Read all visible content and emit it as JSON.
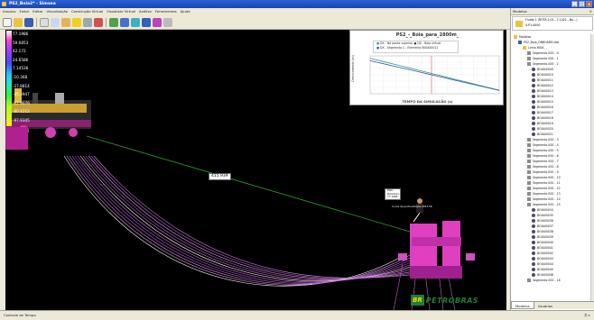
{
  "window": {
    "title": "PS2_Boia2* - Simsea",
    "buttons": [
      "_",
      "□",
      "x"
    ]
  },
  "menu": [
    "Arquivo",
    "Exibir",
    "Editar",
    "Visualização",
    "Construção Virtual",
    "Visualizar Virtual",
    "Análise",
    "Ferramentas",
    "Ajuda"
  ],
  "toolbar": {
    "icons": [
      "new-icon",
      "open-icon",
      "save-icon",
      "wireframe-icon",
      "copy-icon",
      "paste-icon",
      "star-icon",
      "tool-icon",
      "rotate-icon",
      "check-icon",
      "move-icon",
      "cube-icon",
      "chart-icon",
      "color-icon",
      "dropdown-icon"
    ]
  },
  "legend": {
    "values": [
      "77.1986",
      "59.6853",
      "42.172",
      "24.6586",
      "7.14536",
      "-10.368",
      "-27.8814",
      "-45.3947",
      "-62.9079",
      "-80.4212",
      "-97.9345"
    ]
  },
  "chart": {
    "title": "PS2_-_Bóia_para_2800m_",
    "xlabel": "TEMPO DA SIMULAÇÃO (s)",
    "ylabel": "Deslocamento (m)",
    "legend": [
      {
        "label": "DX - Nó ponta superior ● DX - Boia virtual",
        "color": "#3a9c7a"
      },
      {
        "label": "DX - Segmento 2 - Elemento BOIA00012",
        "color": "#2b5ec4"
      }
    ]
  },
  "chart_data": {
    "type": "line",
    "title": "PS2_-_Bóia_para_2800m_",
    "xlabel": "TEMPO DA SIMULAÇÃO (s)",
    "ylabel": "Deslocamento (m)",
    "series": [
      {
        "name": "DX - Nó ponta superior",
        "values": [
          1.0,
          0.85,
          0.7,
          0.55,
          0.4,
          0.25,
          0.1,
          -0.05,
          -0.2,
          -0.35
        ]
      },
      {
        "name": "DX - Segmento 2 - Elemento BOIA00012",
        "values": [
          0.9,
          0.76,
          0.62,
          0.48,
          0.34,
          0.2,
          0.06,
          -0.08,
          -0.22,
          -0.36
        ]
      }
    ]
  },
  "viewport": {
    "distance_label": "415.939",
    "annot_label": "Elab. Boiadoiro\n77.1986",
    "annot_small": "Curva de profundidade 2013.56"
  },
  "logo": {
    "br": "BR",
    "text": "PETROBRAS"
  },
  "sidebar": {
    "header": "Modelos",
    "model_label": "Fluido 1 (ROTA 2.01...7.1421...Nu...)",
    "model_item": "4-P1-0000",
    "tree": [
      {
        "label": "Modelos",
        "icon": "folder",
        "indent": 0
      },
      {
        "label": "PS2_Boia_ONBOARD.dwf",
        "icon": "model",
        "indent": 1
      },
      {
        "label": "Linha BOIA",
        "icon": "folder",
        "indent": 2
      },
      {
        "label": "Segmento 000 - 0",
        "icon": "seg",
        "indent": 3
      },
      {
        "label": "Segmento 000 - 1",
        "icon": "seg",
        "indent": 3
      },
      {
        "label": "Segmento 000 - 2",
        "icon": "seg",
        "indent": 3
      },
      {
        "label": "BOIA00009",
        "icon": "dot",
        "indent": 4
      },
      {
        "label": "BOIA00010",
        "icon": "dot",
        "indent": 4
      },
      {
        "label": "BOIA00011",
        "icon": "dot",
        "indent": 4
      },
      {
        "label": "BOIA00012",
        "icon": "dot",
        "indent": 4
      },
      {
        "label": "BOIA00013",
        "icon": "dot",
        "indent": 4
      },
      {
        "label": "BOIA00014",
        "icon": "dot",
        "indent": 4
      },
      {
        "label": "BOIA00015",
        "icon": "dot",
        "indent": 4
      },
      {
        "label": "BOIA00016",
        "icon": "dot",
        "indent": 4
      },
      {
        "label": "BOIA00017",
        "icon": "dot",
        "indent": 4
      },
      {
        "label": "BOIA00018",
        "icon": "dot",
        "indent": 4
      },
      {
        "label": "BOIA00019",
        "icon": "dot",
        "indent": 4
      },
      {
        "label": "BOIA00020",
        "icon": "dot",
        "indent": 4
      },
      {
        "label": "BOIA00021",
        "icon": "dot",
        "indent": 4
      },
      {
        "label": "Segmento 000 - 3",
        "icon": "seg",
        "indent": 3
      },
      {
        "label": "Segmento 000 - 4",
        "icon": "seg",
        "indent": 3
      },
      {
        "label": "Segmento 000 - 5",
        "icon": "seg",
        "indent": 3
      },
      {
        "label": "Segmento 000 - 6",
        "icon": "seg",
        "indent": 3
      },
      {
        "label": "Segmento 000 - 7",
        "icon": "seg",
        "indent": 3
      },
      {
        "label": "Segmento 000 - 8",
        "icon": "seg",
        "indent": 3
      },
      {
        "label": "Segmento 000 - 9",
        "icon": "seg",
        "indent": 3
      },
      {
        "label": "Segmento 000 - 10",
        "icon": "seg",
        "indent": 3
      },
      {
        "label": "Segmento 000 - 11",
        "icon": "seg",
        "indent": 3
      },
      {
        "label": "Segmento 000 - 12",
        "icon": "seg",
        "indent": 3
      },
      {
        "label": "Segmento 000 - 13",
        "icon": "seg",
        "indent": 3
      },
      {
        "label": "Segmento 000 - 14",
        "icon": "seg",
        "indent": 3
      },
      {
        "label": "Segmento 000 - 15",
        "icon": "seg",
        "indent": 3
      },
      {
        "label": "BOIA00034",
        "icon": "dot",
        "indent": 4
      },
      {
        "label": "BOIA00035",
        "icon": "dot",
        "indent": 4
      },
      {
        "label": "BOIA00036",
        "icon": "dot",
        "indent": 4
      },
      {
        "label": "BOIA00037",
        "icon": "dot",
        "indent": 4
      },
      {
        "label": "BOIA00038",
        "icon": "dot",
        "indent": 4
      },
      {
        "label": "BOIA00039",
        "icon": "dot",
        "indent": 4
      },
      {
        "label": "BOIA00040",
        "icon": "dot",
        "indent": 4
      },
      {
        "label": "BOIA00041",
        "icon": "dot",
        "indent": 4
      },
      {
        "label": "BOIA00042",
        "icon": "dot",
        "indent": 4
      },
      {
        "label": "BOIA00043",
        "icon": "dot",
        "indent": 4
      },
      {
        "label": "BOIA00044",
        "icon": "dot",
        "indent": 4
      },
      {
        "label": "BOIA00045",
        "icon": "dot",
        "indent": 4
      },
      {
        "label": "BOIA00046",
        "icon": "dot",
        "indent": 4
      },
      {
        "label": "Segmento 000 - 16",
        "icon": "seg",
        "indent": 3
      }
    ],
    "tabs": [
      "Modelos",
      "Usuários"
    ]
  },
  "status": {
    "left": "Controle de Tempo",
    "right": "⌗ ×"
  },
  "colors": {
    "background": "#000000",
    "cables": "#d080e0",
    "buoy": "#e040c0",
    "line": "#2aa02a",
    "accent": "#1b7f3a"
  }
}
